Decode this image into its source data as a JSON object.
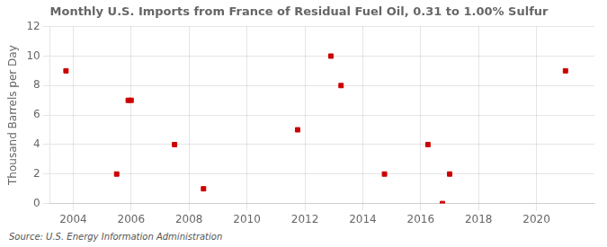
{
  "chart_data": {
    "type": "scatter",
    "title": "Monthly U.S. Imports from France of Residual Fuel Oil, 0.31 to 1.00% Sulfur",
    "ylabel": "Thousand Barrels per Day",
    "source": "Source: U.S. Energy Information Administration",
    "x": [
      2003.75,
      2005.5,
      2005.9,
      2006.0,
      2007.5,
      2008.5,
      2011.75,
      2012.9,
      2013.25,
      2014.75,
      2016.25,
      2016.75,
      2017.0,
      2021.0
    ],
    "values": [
      9,
      2,
      7,
      7,
      4,
      1,
      5,
      10,
      8,
      2,
      4,
      0,
      2,
      9
    ],
    "color": "#cc0000",
    "marker": "square",
    "xlim": [
      2003.2,
      2022.0
    ],
    "xticks": [
      2004,
      2006,
      2008,
      2010,
      2012,
      2014,
      2016,
      2018,
      2020
    ],
    "ylim": [
      0,
      12
    ],
    "yticks": [
      0,
      2,
      4,
      6,
      8,
      10,
      12
    ],
    "grid": true
  }
}
